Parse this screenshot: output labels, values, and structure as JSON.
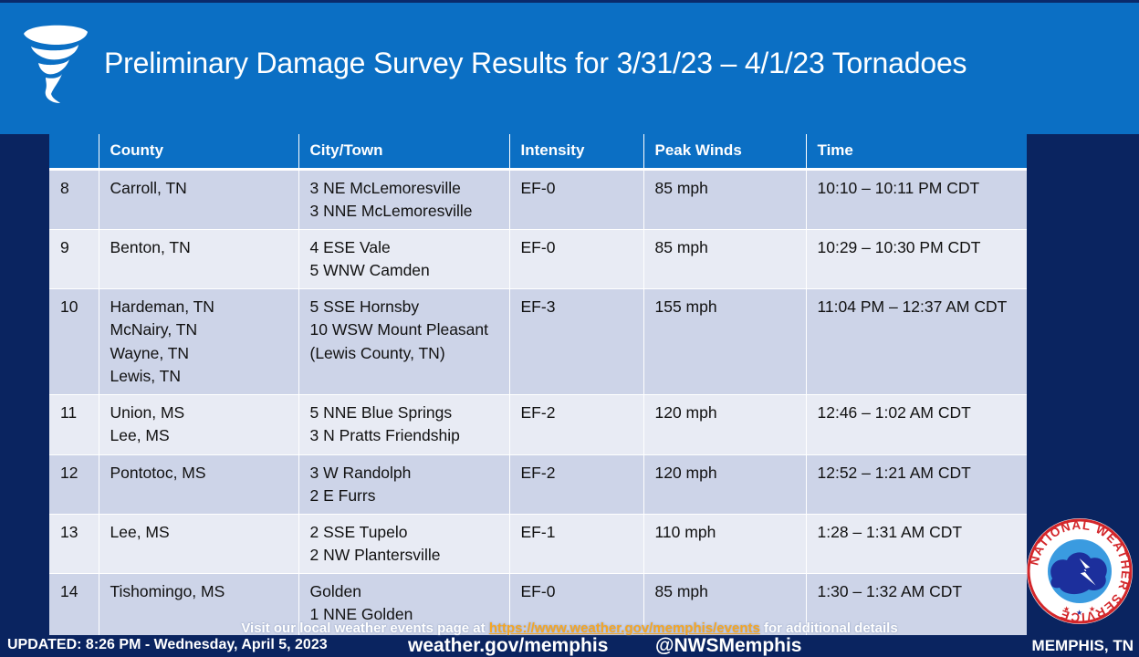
{
  "header": {
    "title": "Preliminary Damage Survey Results for 3/31/23 – 4/1/23 Tornadoes",
    "icon": "tornado-icon"
  },
  "table": {
    "columns": [
      "",
      "County",
      "City/Town",
      "Intensity",
      "Peak Winds",
      "Time"
    ],
    "rows": [
      {
        "num": "8",
        "county": [
          "Carroll, TN"
        ],
        "city": [
          "3 NE McLemoresville",
          "3 NNE McLemoresville"
        ],
        "intensity": "EF-0",
        "winds": "85 mph",
        "time": "10:10 – 10:11 PM CDT"
      },
      {
        "num": "9",
        "county": [
          "Benton, TN"
        ],
        "city": [
          "4 ESE Vale",
          "5 WNW Camden"
        ],
        "intensity": "EF-0",
        "winds": "85 mph",
        "time": "10:29 – 10:30 PM CDT"
      },
      {
        "num": "10",
        "county": [
          "Hardeman, TN",
          "McNairy, TN",
          "Wayne, TN",
          "Lewis, TN"
        ],
        "city": [
          "5 SSE Hornsby",
          "10 WSW Mount Pleasant (Lewis County, TN)"
        ],
        "intensity": "EF-3",
        "winds": "155 mph",
        "time": "11:04 PM – 12:37 AM CDT"
      },
      {
        "num": "11",
        "county": [
          "Union, MS",
          "Lee, MS"
        ],
        "city": [
          "5 NNE Blue Springs",
          "3 N Pratts Friendship"
        ],
        "intensity": "EF-2",
        "winds": "120 mph",
        "time": "12:46 – 1:02 AM CDT"
      },
      {
        "num": "12",
        "county": [
          "Pontotoc, MS"
        ],
        "city": [
          "3 W Randolph",
          "2 E Furrs"
        ],
        "intensity": "EF-2",
        "winds": "120 mph",
        "time": "12:52 – 1:21 AM CDT"
      },
      {
        "num": "13",
        "county": [
          "Lee, MS"
        ],
        "city": [
          "2 SSE Tupelo",
          "2 NW Plantersville"
        ],
        "intensity": "EF-1",
        "winds": "110 mph",
        "time": "1:28 – 1:31 AM CDT"
      },
      {
        "num": "14",
        "county": [
          "Tishomingo, MS"
        ],
        "city": [
          "Golden",
          "1 NNE Golden"
        ],
        "intensity": "EF-0",
        "winds": "85 mph",
        "time": "1:30 – 1:32 AM CDT"
      }
    ]
  },
  "footer": {
    "link_prefix": "Visit our local weather events page at ",
    "link_text": "https://www.weather.gov/memphis/events",
    "link_suffix": " for additional details",
    "updated": "UPDATED: 8:26 PM - Wednesday, April 5, 2023",
    "site": "weather.gov/memphis",
    "handle": "@NWSMemphis",
    "location": "MEMPHIS, TN"
  },
  "logo": {
    "text": "NATIONAL WEATHER SERVICE",
    "icon": "nws-logo-icon"
  },
  "colors": {
    "header_blue": "#0b6fc4",
    "background_navy": "#0a2460",
    "row_odd": "#cdd4e8",
    "row_even": "#e8ebf4",
    "link_orange": "#f5a623"
  }
}
